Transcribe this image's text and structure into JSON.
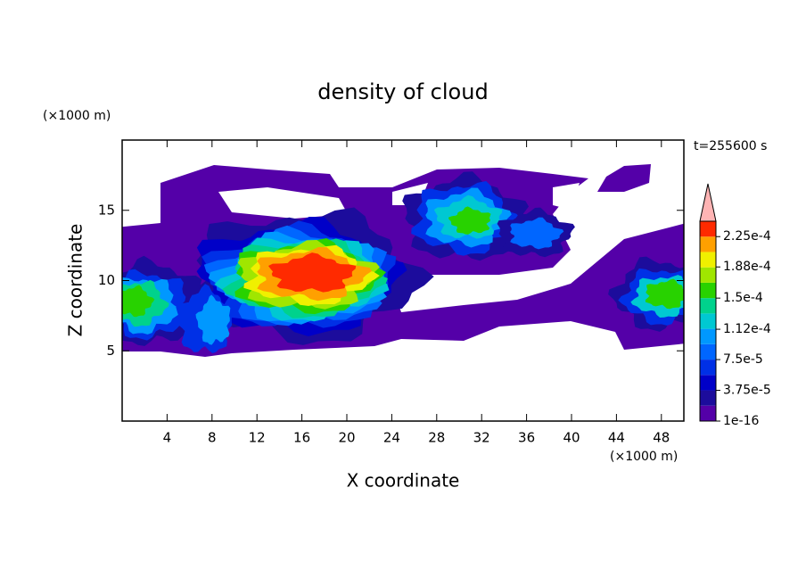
{
  "chart_data": {
    "type": "contour",
    "title": "density of cloud",
    "xlabel": "X coordinate",
    "ylabel": "Z coordinate",
    "x_unit": "(×1000 m)",
    "y_unit": "(×1000 m)",
    "time_label": "t=255600 s",
    "xlim": [
      0,
      50
    ],
    "ylim": [
      0,
      20
    ],
    "xticks": [
      4,
      8,
      12,
      16,
      20,
      24,
      28,
      32,
      36,
      40,
      44,
      48
    ],
    "yticks": [
      5,
      10,
      15
    ],
    "levels": [
      1e-16,
      1.875e-05,
      3.75e-05,
      5.625e-05,
      7.5e-05,
      9.375e-05,
      0.0001125,
      0.00013125,
      0.00015,
      0.00016875,
      0.0001875,
      0.00020625,
      0.000225,
      0.00024375
    ],
    "colors": [
      "#5400a8",
      "#1c0c9c",
      "#0000c8",
      "#0030e6",
      "#0066ff",
      "#0098ff",
      "#00c8d2",
      "#00d28c",
      "#28d200",
      "#a0e600",
      "#f0f000",
      "#ffa000",
      "#ff2a00"
    ],
    "extend_color": "#ffb4b4",
    "cticks": [
      1e-16,
      {
        "value": 3.75e-05,
        "label": "3.75e-5"
      },
      {
        "value": 7.5e-05,
        "label": "7.5e-5"
      },
      {
        "value": 0.000112,
        "label": "1.12e-4"
      },
      {
        "value": 0.00015,
        "label": "1.5e-4"
      },
      {
        "value": 0.000188,
        "label": "1.88e-4"
      },
      {
        "value": 0.000225,
        "label": "2.25e-4"
      }
    ]
  }
}
